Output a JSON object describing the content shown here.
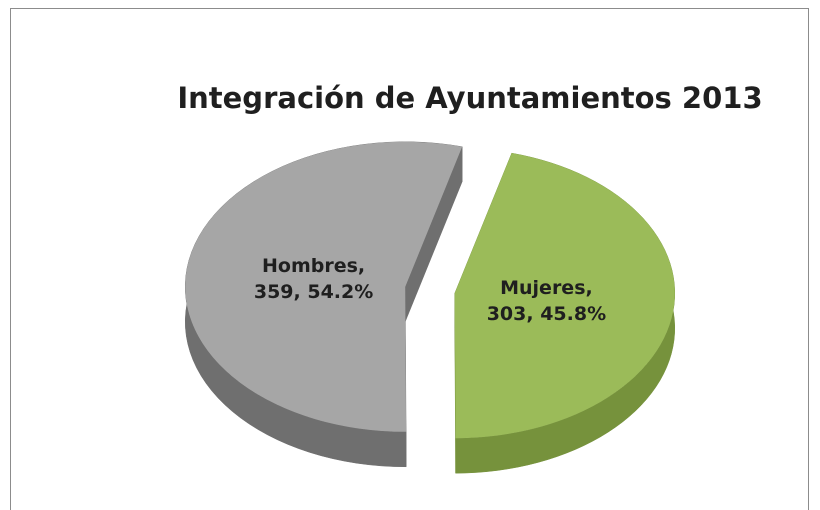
{
  "chart_data": {
    "type": "pie",
    "title": "Integración de Ayuntamientos 2013",
    "values": [
      303,
      359
    ],
    "value_labels": [
      [
        "Mujeres,",
        "303, 45.8%"
      ],
      [
        "Hombres,",
        "359, 54.2%"
      ]
    ],
    "colors": [
      "#9bbb59",
      "#a6a6a6"
    ],
    "side_colors": [
      "#76923c",
      "#6f6f6f"
    ]
  }
}
